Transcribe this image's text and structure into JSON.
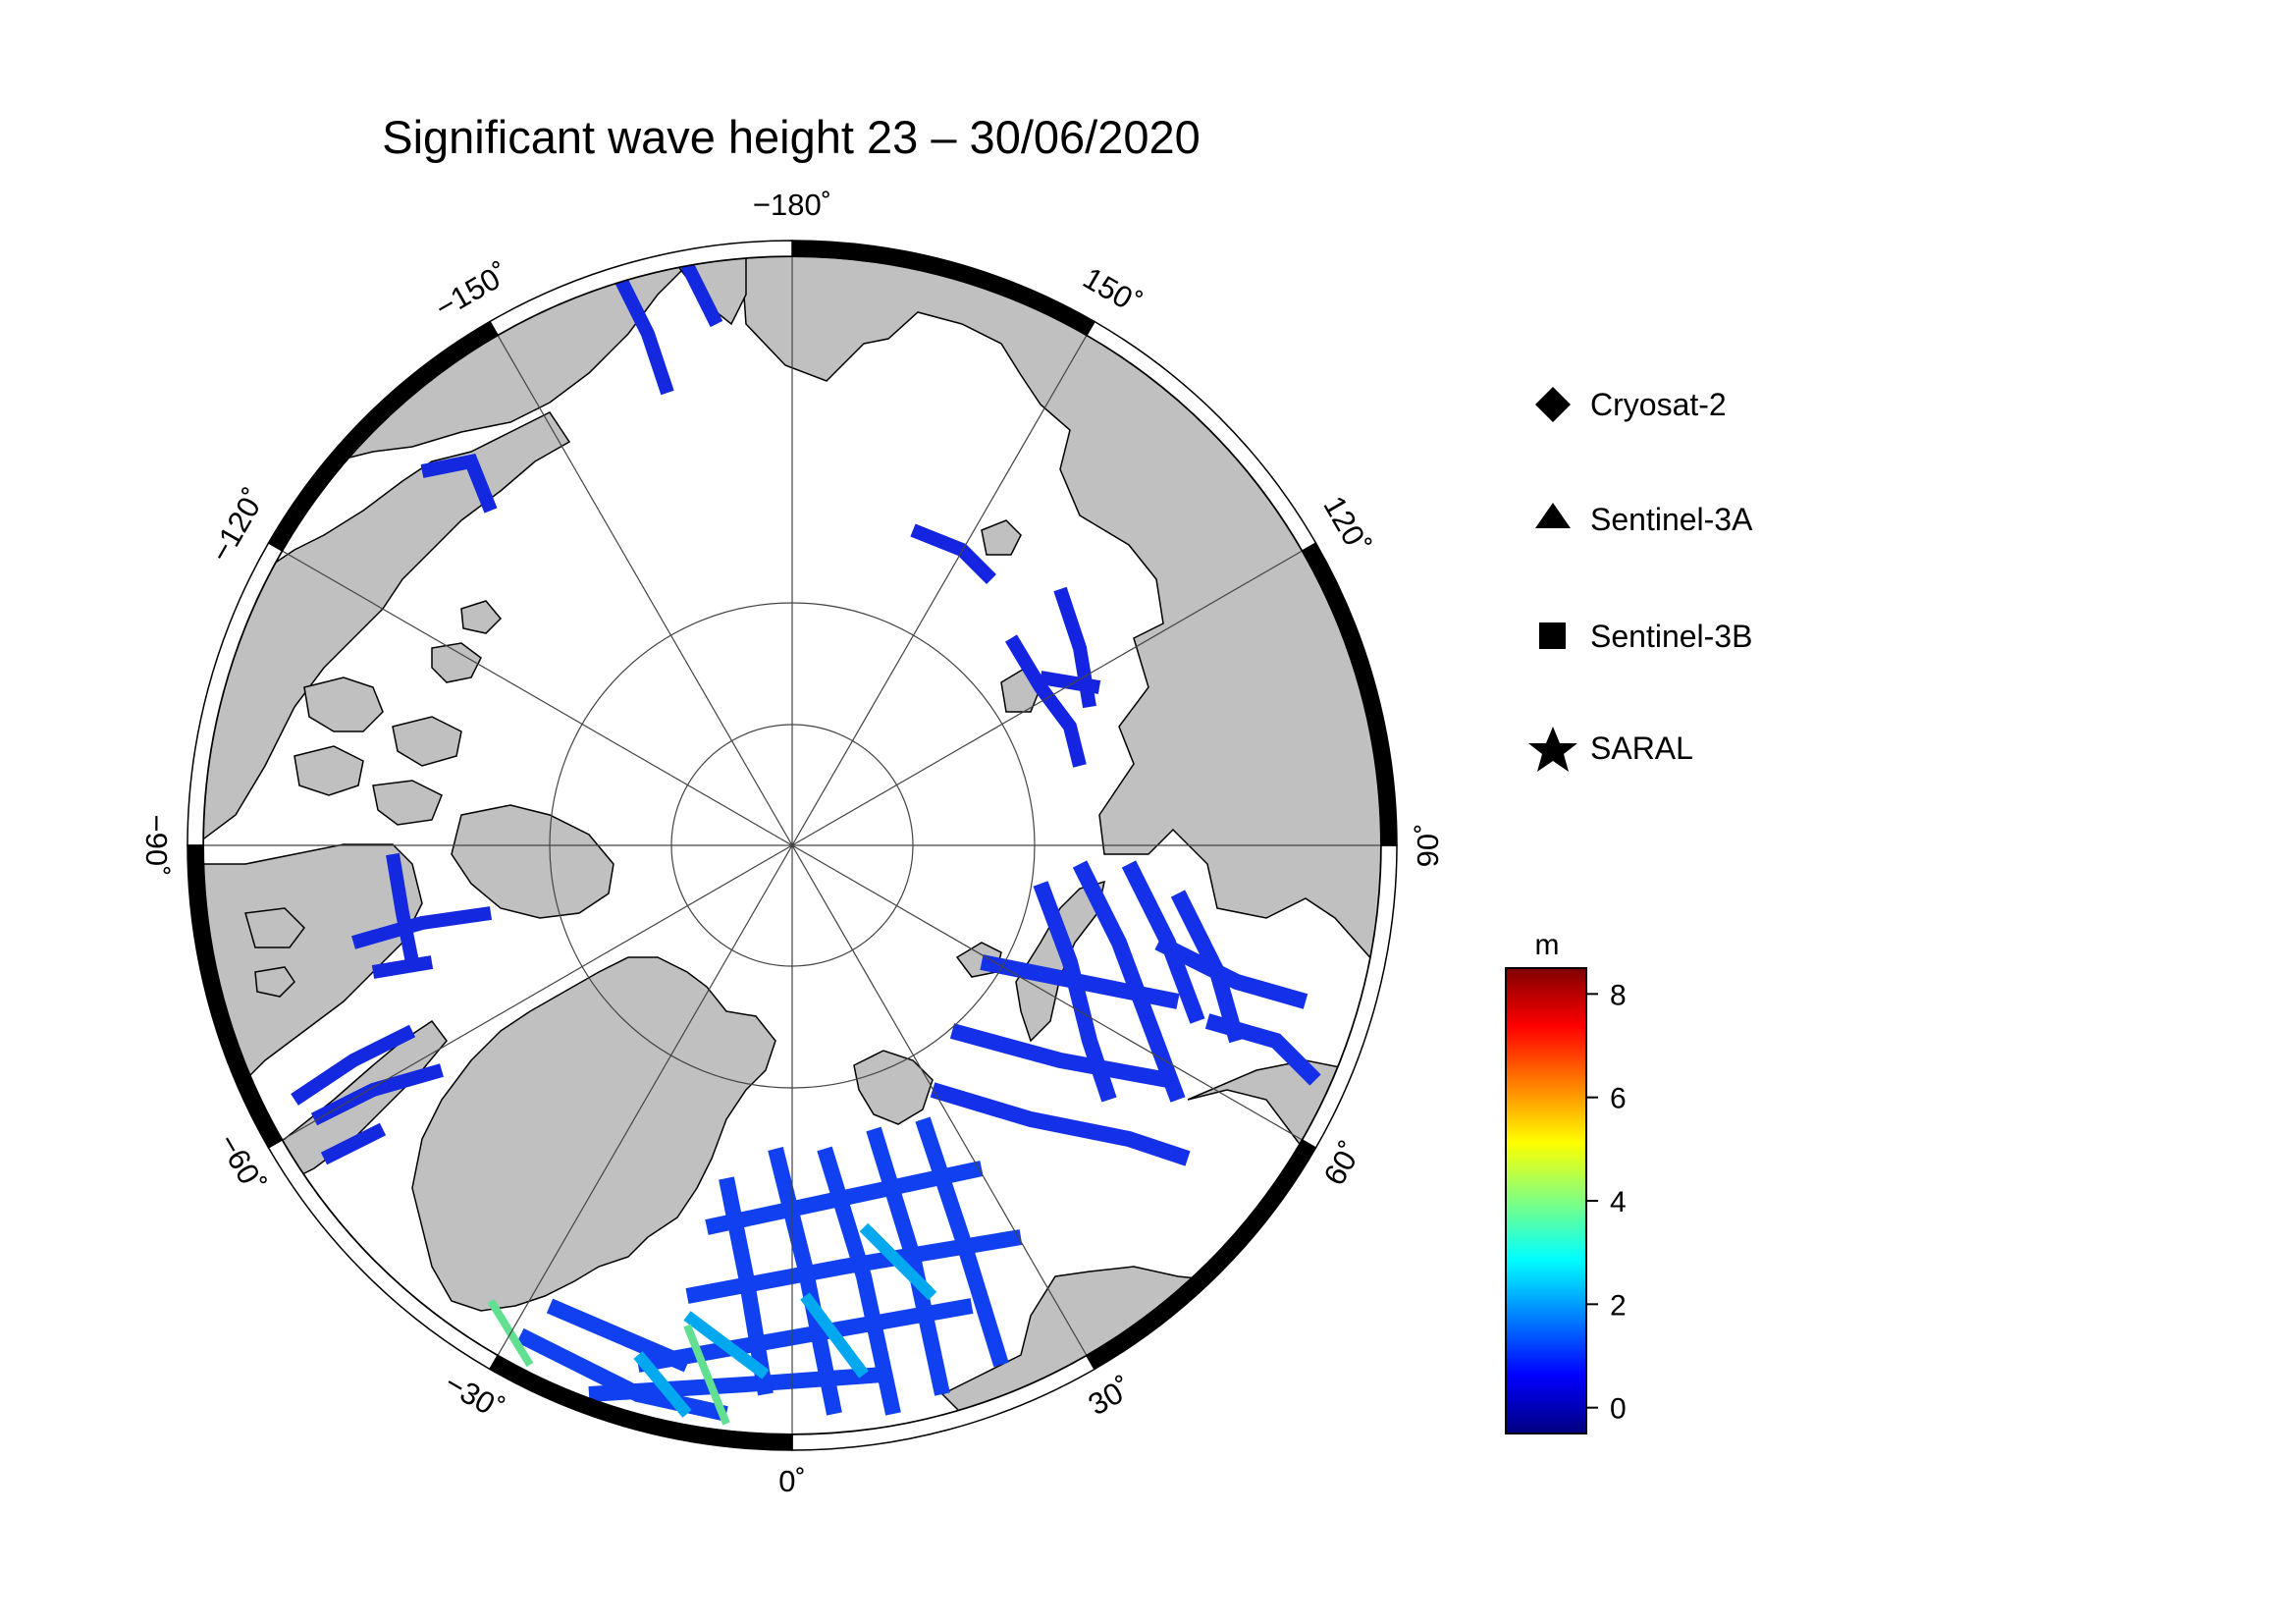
{
  "title": "Significant wave height 23 – 30/06/2020",
  "map": {
    "projection": "polar-stereographic-north",
    "land_color": "#c0c0c0",
    "ocean_color": "#ffffff",
    "longitude_labels": [
      {
        "lon": 180,
        "text": "−180˚"
      },
      {
        "lon": 150,
        "text": "150˚"
      },
      {
        "lon": 120,
        "text": "120˚"
      },
      {
        "lon": 90,
        "text": "90˚"
      },
      {
        "lon": 60,
        "text": "60˚"
      },
      {
        "lon": 30,
        "text": "30˚"
      },
      {
        "lon": 0,
        "text": "0˚"
      },
      {
        "lon": -30,
        "text": "−30˚"
      },
      {
        "lon": -60,
        "text": "−60˚"
      },
      {
        "lon": -90,
        "text": "−90˚"
      },
      {
        "lon": -120,
        "text": "−120˚"
      },
      {
        "lon": -150,
        "text": "−150˚"
      }
    ],
    "latitude_circles": [
      80,
      85
    ]
  },
  "legend": {
    "items": [
      {
        "symbol": "diamond",
        "label": "Cryosat-2"
      },
      {
        "symbol": "triangle",
        "label": "Sentinel-3A"
      },
      {
        "symbol": "square",
        "label": "Sentinel-3B"
      },
      {
        "symbol": "star",
        "label": "SARAL"
      }
    ]
  },
  "colorbar": {
    "unit": "m",
    "range": [
      -0.5,
      8.5
    ],
    "ticks": [
      {
        "value": 0,
        "text": "0"
      },
      {
        "value": 2,
        "text": "2"
      },
      {
        "value": 4,
        "text": "4"
      },
      {
        "value": 6,
        "text": "6"
      },
      {
        "value": 8,
        "text": "8"
      }
    ],
    "stops": [
      "#00007f",
      "#0000ff",
      "#0080ff",
      "#00ffff",
      "#80ff80",
      "#ffff00",
      "#ff8000",
      "#ff0000",
      "#800000"
    ]
  }
}
